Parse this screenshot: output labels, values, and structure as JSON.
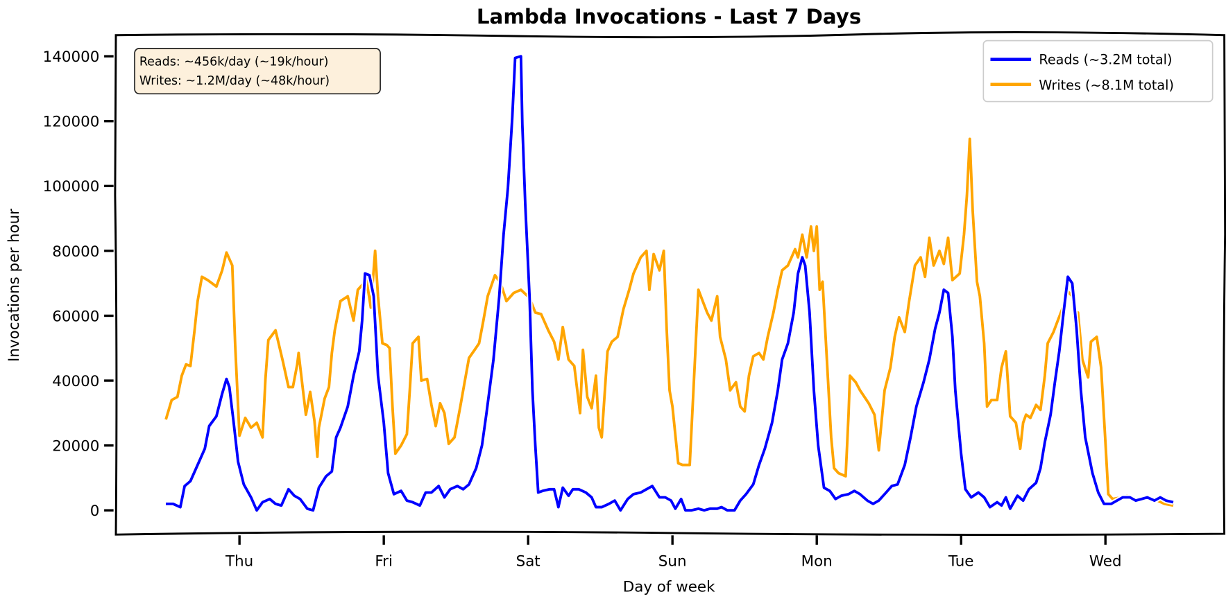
{
  "chart_data": {
    "type": "line",
    "title": "Lambda Invocations - Last 7 Days",
    "xlabel": "Day of week",
    "ylabel": "Invocations per hour",
    "ylim": [
      0,
      140000
    ],
    "xlim_days": [
      -0.51,
      6.47
    ],
    "yticks": [
      0,
      20000,
      40000,
      60000,
      80000,
      100000,
      120000,
      140000
    ],
    "xticks": [
      {
        "label": "Thu",
        "day": 0
      },
      {
        "label": "Fri",
        "day": 1
      },
      {
        "label": "Sat",
        "day": 2
      },
      {
        "label": "Sun",
        "day": 3
      },
      {
        "label": "Mon",
        "day": 4
      },
      {
        "label": "Tue",
        "day": 5
      },
      {
        "label": "Wed",
        "day": 6
      }
    ],
    "grid": false,
    "legend_placement": "top-right",
    "annotation": {
      "lines": [
        "Reads: ~456k/day (~19k/hour)",
        "Writes: ~1.2M/day (~48k/hour)"
      ],
      "placement": "top-left",
      "background": "#fdf0dc"
    },
    "series": [
      {
        "name": "Reads (~3.2M total)",
        "color": "#0000ff",
        "x": [
          -0.51,
          -0.46,
          -0.41,
          -0.38,
          -0.34,
          -0.29,
          -0.24,
          -0.21,
          -0.16,
          -0.12,
          -0.09,
          -0.07,
          -0.04,
          -0.01,
          0.03,
          0.08,
          0.12,
          0.16,
          0.21,
          0.25,
          0.29,
          0.34,
          0.38,
          0.42,
          0.47,
          0.51,
          0.55,
          0.6,
          0.64,
          0.67,
          0.7,
          0.75,
          0.79,
          0.83,
          0.85,
          0.87,
          0.9,
          0.93,
          0.96,
          1.0,
          1.03,
          1.07,
          1.12,
          1.16,
          1.2,
          1.25,
          1.29,
          1.33,
          1.38,
          1.42,
          1.46,
          1.51,
          1.55,
          1.59,
          1.64,
          1.68,
          1.71,
          1.76,
          1.8,
          1.83,
          1.86,
          1.89,
          1.91,
          1.95,
          1.96,
          1.98,
          2.01,
          2.03,
          2.05,
          2.07,
          2.1,
          2.15,
          2.18,
          2.21,
          2.24,
          2.28,
          2.31,
          2.35,
          2.4,
          2.44,
          2.47,
          2.51,
          2.56,
          2.6,
          2.64,
          2.69,
          2.73,
          2.78,
          2.82,
          2.86,
          2.91,
          2.95,
          2.99,
          3.02,
          3.06,
          3.09,
          3.13,
          3.18,
          3.22,
          3.26,
          3.31,
          3.34,
          3.38,
          3.43,
          3.47,
          3.51,
          3.56,
          3.6,
          3.64,
          3.69,
          3.73,
          3.76,
          3.8,
          3.84,
          3.87,
          3.9,
          3.92,
          3.95,
          3.98,
          4.01,
          4.05,
          4.09,
          4.13,
          4.17,
          4.22,
          4.26,
          4.3,
          4.35,
          4.39,
          4.43,
          4.48,
          4.52,
          4.56,
          4.61,
          4.65,
          4.69,
          4.74,
          4.78,
          4.82,
          4.85,
          4.88,
          4.91,
          4.94,
          4.96,
          5.0,
          5.03,
          5.07,
          5.12,
          5.16,
          5.2,
          5.25,
          5.28,
          5.31,
          5.34,
          5.39,
          5.43,
          5.47,
          5.52,
          5.55,
          5.58,
          5.62,
          5.65,
          5.68,
          5.71,
          5.74,
          5.77,
          5.8,
          5.83,
          5.86,
          5.91,
          5.95,
          5.99,
          6.04,
          6.08,
          6.12,
          6.17,
          6.21,
          6.25,
          6.29,
          6.34,
          6.38,
          6.42,
          6.47
        ],
        "y": [
          2000,
          2000,
          1000,
          7500,
          9000,
          14000,
          19000,
          26000,
          29000,
          36000,
          40500,
          38000,
          27000,
          15000,
          8000,
          4000,
          0,
          2500,
          3500,
          2000,
          1500,
          6500,
          4500,
          3500,
          500,
          0,
          7000,
          10500,
          12000,
          22500,
          25500,
          32000,
          41500,
          49000,
          58500,
          73000,
          72500,
          66000,
          41500,
          27000,
          11500,
          5000,
          6000,
          3000,
          2500,
          1500,
          5500,
          5500,
          7500,
          4000,
          6500,
          7500,
          6500,
          8000,
          13000,
          20000,
          29500,
          46500,
          66000,
          85000,
          99500,
          121000,
          139500,
          140000,
          119000,
          94500,
          66000,
          37000,
          20000,
          5500,
          6000,
          6500,
          6500,
          1000,
          7000,
          4500,
          6500,
          6500,
          5500,
          4000,
          1000,
          1000,
          2000,
          3000,
          0,
          3500,
          5000,
          5500,
          6500,
          7500,
          4000,
          4000,
          3000,
          500,
          3500,
          0,
          0,
          500,
          0,
          500,
          500,
          1000,
          0,
          0,
          3000,
          5000,
          8000,
          14000,
          19000,
          27000,
          37000,
          46500,
          51500,
          61000,
          73000,
          78000,
          75500,
          61000,
          37000,
          20000,
          7000,
          6000,
          3500,
          4500,
          5000,
          6000,
          5000,
          3000,
          2000,
          3000,
          5500,
          7500,
          8000,
          14000,
          22500,
          32000,
          39500,
          46500,
          56000,
          61000,
          68000,
          67000,
          53500,
          37000,
          17500,
          6500,
          4000,
          5500,
          4000,
          1000,
          2500,
          1500,
          4000,
          500,
          4500,
          3000,
          6500,
          8500,
          13000,
          21000,
          29500,
          39500,
          49000,
          61000,
          72000,
          70000,
          56000,
          37000,
          22500,
          11500,
          5500,
          2000,
          2000,
          3000,
          4000,
          4000,
          3000,
          3500,
          4000,
          3000,
          4000,
          3000,
          2500
        ]
      },
      {
        "name": "Writes (~8.1M total)",
        "color": "#ffa500",
        "x": [
          -0.51,
          -0.47,
          -0.43,
          -0.4,
          -0.37,
          -0.34,
          -0.31,
          -0.29,
          -0.26,
          -0.22,
          -0.16,
          -0.12,
          -0.09,
          -0.05,
          -0.03,
          0.0,
          0.04,
          0.08,
          0.12,
          0.16,
          0.18,
          0.2,
          0.25,
          0.3,
          0.34,
          0.37,
          0.4,
          0.41,
          0.44,
          0.46,
          0.49,
          0.52,
          0.54,
          0.55,
          0.59,
          0.62,
          0.64,
          0.66,
          0.7,
          0.75,
          0.79,
          0.82,
          0.88,
          0.91,
          0.94,
          0.96,
          0.99,
          1.02,
          1.04,
          1.06,
          1.08,
          1.12,
          1.16,
          1.18,
          1.2,
          1.24,
          1.26,
          1.3,
          1.33,
          1.36,
          1.39,
          1.42,
          1.45,
          1.49,
          1.53,
          1.56,
          1.59,
          1.63,
          1.66,
          1.69,
          1.72,
          1.77,
          1.81,
          1.85,
          1.9,
          1.95,
          2.01,
          2.05,
          2.09,
          2.14,
          2.18,
          2.21,
          2.24,
          2.28,
          2.32,
          2.36,
          2.38,
          2.41,
          2.44,
          2.47,
          2.49,
          2.51,
          2.55,
          2.58,
          2.62,
          2.66,
          2.7,
          2.73,
          2.78,
          2.82,
          2.84,
          2.87,
          2.91,
          2.94,
          2.96,
          2.98,
          3.0,
          3.04,
          3.07,
          3.12,
          3.14,
          3.18,
          3.21,
          3.24,
          3.27,
          3.31,
          3.33,
          3.37,
          3.4,
          3.44,
          3.47,
          3.5,
          3.53,
          3.56,
          3.6,
          3.63,
          3.66,
          3.7,
          3.73,
          3.76,
          3.8,
          3.85,
          3.87,
          3.9,
          3.93,
          3.96,
          3.98,
          4.0,
          4.02,
          4.04,
          4.07,
          4.1,
          4.12,
          4.15,
          4.2,
          4.22,
          4.23,
          4.27,
          4.3,
          4.36,
          4.4,
          4.43,
          4.47,
          4.51,
          4.54,
          4.57,
          4.61,
          4.64,
          4.68,
          4.72,
          4.75,
          4.78,
          4.81,
          4.85,
          4.88,
          4.91,
          4.94,
          4.99,
          5.02,
          5.04,
          5.06,
          5.08,
          5.11,
          5.13,
          5.16,
          5.18,
          5.21,
          5.25,
          5.28,
          5.31,
          5.34,
          5.38,
          5.41,
          5.43,
          5.45,
          5.48,
          5.52,
          5.55,
          5.58,
          5.6,
          5.64,
          5.67,
          5.7,
          5.74,
          5.77,
          5.79,
          5.81,
          5.84,
          5.88,
          5.9,
          5.94,
          5.97,
          6.0,
          6.02,
          6.05,
          6.11,
          6.15,
          6.2,
          6.24,
          6.3,
          6.36,
          6.41,
          6.47
        ],
        "y": [
          28000,
          34000,
          35000,
          41500,
          45000,
          44500,
          56000,
          64500,
          72000,
          71000,
          69000,
          74000,
          79500,
          75500,
          51000,
          23000,
          28500,
          25500,
          27000,
          22500,
          40500,
          52500,
          55500,
          46000,
          38000,
          38000,
          45000,
          48500,
          37000,
          29500,
          36500,
          27500,
          16500,
          25500,
          34500,
          38000,
          48500,
          55500,
          64500,
          66000,
          58500,
          68000,
          71000,
          62500,
          80000,
          66000,
          51500,
          51000,
          50000,
          32000,
          17500,
          20000,
          23500,
          37000,
          51500,
          53500,
          40000,
          40500,
          32500,
          26000,
          33000,
          30000,
          20500,
          22500,
          32000,
          39500,
          47000,
          49500,
          51500,
          58500,
          66000,
          72500,
          70000,
          64500,
          67000,
          68000,
          65500,
          61000,
          60500,
          55500,
          52000,
          46500,
          56500,
          46500,
          44500,
          30000,
          49500,
          35000,
          31500,
          41500,
          25500,
          22500,
          49000,
          52000,
          53500,
          62000,
          68000,
          73000,
          78000,
          80000,
          68000,
          79000,
          74000,
          80000,
          56000,
          37000,
          32000,
          14500,
          14000,
          14000,
          32000,
          68000,
          64500,
          61000,
          58500,
          66000,
          53500,
          46500,
          37000,
          39500,
          32000,
          30500,
          41500,
          47500,
          48500,
          46500,
          53500,
          61000,
          68000,
          74000,
          75500,
          80500,
          78000,
          85000,
          78000,
          87500,
          80000,
          87500,
          68000,
          70500,
          46500,
          22500,
          13000,
          11500,
          10500,
          29500,
          41500,
          39500,
          37000,
          33000,
          29500,
          18500,
          37000,
          44000,
          53500,
          59500,
          55000,
          64500,
          75500,
          78000,
          72000,
          84000,
          75500,
          80000,
          76000,
          84000,
          71000,
          73000,
          85000,
          97000,
          114500,
          92500,
          70500,
          66000,
          51500,
          32000,
          34000,
          34000,
          44000,
          49000,
          29000,
          27000,
          19000,
          27000,
          29500,
          28500,
          32500,
          31000,
          41500,
          51500,
          55000,
          58500,
          62000,
          67500,
          66000,
          56000,
          61000,
          46500,
          41000,
          52000,
          53500,
          44000,
          21000,
          5000,
          3500,
          4000,
          4500,
          3000,
          3500,
          4000,
          3000,
          2000,
          1500
        ]
      }
    ]
  }
}
